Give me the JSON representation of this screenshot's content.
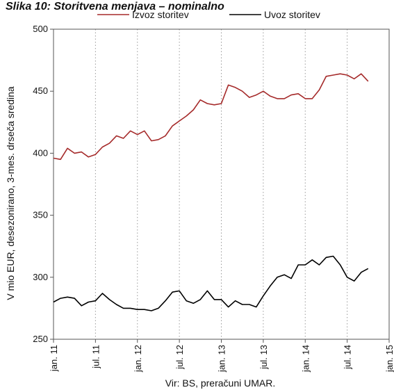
{
  "chart_data": {
    "type": "line",
    "title": "Slika 10: Storitvena menjava – nominalno",
    "ylabel": "V mio EUR, desezonirano, 3-mes. drseča sredina",
    "source_note": "Vir: BS, preračuni UMAR.",
    "ylim": [
      250,
      500
    ],
    "yticks": [
      250,
      300,
      350,
      400,
      450,
      500
    ],
    "grid": "vertical-dotted",
    "legend_position": "top",
    "x_tick_labels": [
      "jan. 11",
      "jul. 11",
      "jan. 12",
      "jul. 12",
      "jan. 13",
      "jul. 13",
      "jan. 14",
      "jul. 14",
      "jan. 15"
    ],
    "x_start": "jan. 11",
    "x": [
      "jan. 11",
      "feb. 11",
      "mar. 11",
      "apr. 11",
      "maj 11",
      "jun. 11",
      "jul. 11",
      "avg. 11",
      "sep. 11",
      "okt. 11",
      "nov. 11",
      "dec. 11",
      "jan. 12",
      "feb. 12",
      "mar. 12",
      "apr. 12",
      "maj 12",
      "jun. 12",
      "jul. 12",
      "avg. 12",
      "sep. 12",
      "okt. 12",
      "nov. 12",
      "dec. 12",
      "jan. 13",
      "feb. 13",
      "mar. 13",
      "apr. 13",
      "maj 13",
      "jun. 13",
      "jul. 13",
      "avg. 13",
      "sep. 13",
      "okt. 13",
      "nov. 13",
      "dec. 13",
      "jan. 14",
      "feb. 14",
      "mar. 14",
      "apr. 14",
      "maj 14",
      "jun. 14",
      "jul. 14",
      "avg. 14",
      "sep. 14",
      "okt. 14"
    ],
    "series": [
      {
        "name": "Izvoz storitev",
        "color": "#a52a2a",
        "values": [
          396,
          395,
          404,
          400,
          401,
          397,
          399,
          405,
          408,
          414,
          412,
          418,
          415,
          418,
          410,
          411,
          414,
          422,
          426,
          430,
          435,
          443,
          440,
          439,
          440,
          455,
          453,
          450,
          445,
          447,
          450,
          446,
          444,
          444,
          447,
          448,
          444,
          444,
          451,
          462,
          463,
          464,
          463,
          460,
          464,
          458
        ]
      },
      {
        "name": "Uvoz storitev",
        "color": "#000000",
        "values": [
          280,
          283,
          284,
          283,
          277,
          280,
          281,
          287,
          282,
          278,
          275,
          275,
          274,
          274,
          273,
          275,
          281,
          288,
          289,
          281,
          279,
          282,
          289,
          282,
          282,
          276,
          281,
          278,
          278,
          276,
          285,
          293,
          300,
          302,
          299,
          310,
          310,
          314,
          310,
          316,
          317,
          310,
          300,
          297,
          304,
          307
        ]
      }
    ]
  }
}
